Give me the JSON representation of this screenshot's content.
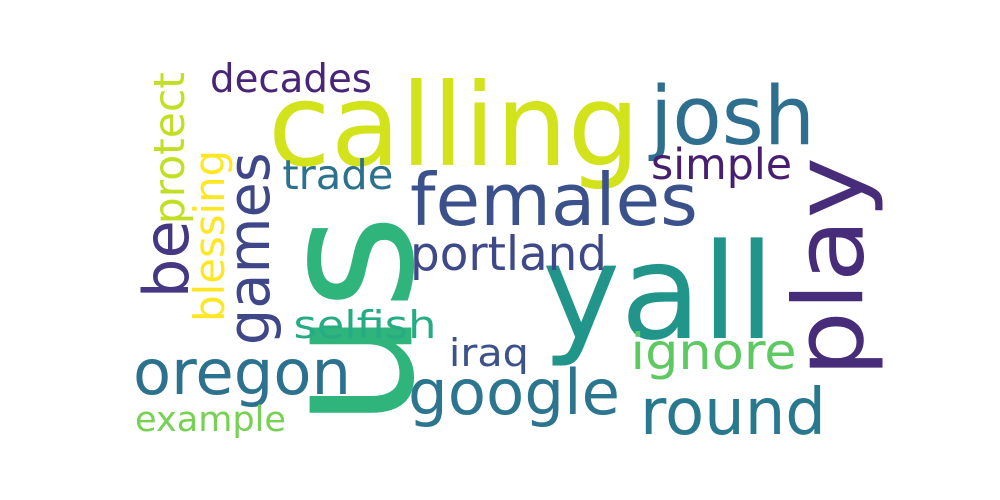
{
  "cloud": {
    "words": [
      {
        "text": "us",
        "color": "#2fb47c",
        "rotated": true
      },
      {
        "text": "calling",
        "color": "#d2e21b",
        "rotated": false
      },
      {
        "text": "yall",
        "color": "#22958b",
        "rotated": false
      },
      {
        "text": "play",
        "color": "#472c7a",
        "rotated": true
      },
      {
        "text": "josh",
        "color": "#2e6e8e",
        "rotated": false
      },
      {
        "text": "females",
        "color": "#3b518b",
        "rotated": false
      },
      {
        "text": "google",
        "color": "#2b758e",
        "rotated": false
      },
      {
        "text": "round",
        "color": "#29798e",
        "rotated": false
      },
      {
        "text": "games",
        "color": "#3f4788",
        "rotated": true
      },
      {
        "text": "oregon",
        "color": "#2c728e",
        "rotated": false
      },
      {
        "text": "be",
        "color": "#453781",
        "rotated": true
      },
      {
        "text": "portland",
        "color": "#3e4989",
        "rotated": false
      },
      {
        "text": "decades",
        "color": "#482576",
        "rotated": false
      },
      {
        "text": "simple",
        "color": "#481f70",
        "rotated": false
      },
      {
        "text": "trade",
        "color": "#2c718e",
        "rotated": false
      },
      {
        "text": "ignore",
        "color": "#5ec962",
        "rotated": false
      },
      {
        "text": "selfish",
        "color": "#25ac82",
        "rotated": false
      },
      {
        "text": "iraq",
        "color": "#3b528b",
        "rotated": false
      },
      {
        "text": "example",
        "color": "#77d153",
        "rotated": false
      },
      {
        "text": "protect",
        "color": "#c2df23",
        "rotated": true
      },
      {
        "text": "blessing",
        "color": "#fde725",
        "rotated": true
      }
    ]
  }
}
